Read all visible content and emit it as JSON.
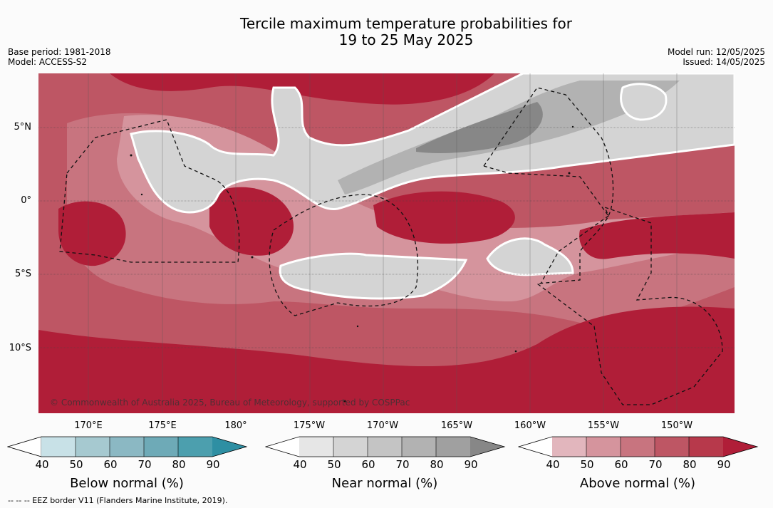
{
  "title": {
    "line1": "Tercile maximum temperature probabilities for",
    "line2": "19 to 25 May 2025"
  },
  "meta_left": {
    "base_period": "Base period: 1981-2018",
    "model": "Model: ACCESS-S2"
  },
  "meta_right": {
    "model_run": "Model run: 12/05/2025",
    "issued": "Issued: 14/05/2025"
  },
  "map": {
    "lat_labels": [
      "5°N",
      "0°",
      "5°S",
      "10°S"
    ],
    "lon_labels": [
      "170°E",
      "175°E",
      "180°",
      "175°W",
      "170°W",
      "165°W",
      "160°W",
      "155°W",
      "150°W"
    ],
    "copyright": "© Commonwealth of Australia 2025, Bureau of Meteorology, supported by COSPPac"
  },
  "colorbars": {
    "below": {
      "title": "Below normal (%)",
      "ticks": [
        "40",
        "50",
        "60",
        "70",
        "80",
        "90"
      ],
      "colors": [
        "#ffffff",
        "#c8e1e7",
        "#a6c9d0",
        "#8bb8c3",
        "#6eaab7",
        "#4c9fae",
        "#2e8fa3"
      ]
    },
    "near": {
      "title": "Near normal (%)",
      "ticks": [
        "40",
        "50",
        "60",
        "70",
        "80",
        "90"
      ],
      "colors": [
        "#ffffff",
        "#e6e6e6",
        "#d4d4d4",
        "#c4c4c4",
        "#b2b2b2",
        "#a0a0a0",
        "#878787"
      ]
    },
    "above": {
      "title": "Above normal (%)",
      "ticks": [
        "40",
        "50",
        "60",
        "70",
        "80",
        "90"
      ],
      "colors": [
        "#ffffff",
        "#e2b6bd",
        "#d5949d",
        "#c8747f",
        "#be5664",
        "#b7394b",
        "#b01e38"
      ]
    }
  },
  "footnote": "--  --  -- EEZ border V11 (Flanders Marine Institute, 2019)."
}
